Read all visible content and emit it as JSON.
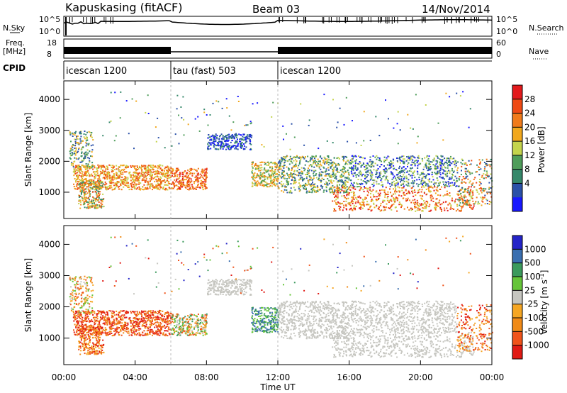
{
  "header": {
    "title": "Kapuskasing (fitACF)",
    "beam": "Beam 03",
    "date": "14/Nov/2014"
  },
  "strip_labels": {
    "nsky": "N.Sky",
    "nsky_top": "10^5",
    "nsky_bottom": "10^0",
    "nsearch": "N.Search",
    "nsearch_top": "10^5",
    "nsearch_bottom": "10^0",
    "freq": "Freq.",
    "freq_unit": "[MHz]",
    "freq_top": "18",
    "freq_bottom": "8",
    "nave": "Nave",
    "nave_top": "60",
    "nave_bottom": "0",
    "cpid": "CPID"
  },
  "cpid_segments": [
    {
      "label": "icescan 1200",
      "start": 0,
      "end": 6
    },
    {
      "label": "tau (fast) 503",
      "start": 6,
      "end": 12
    },
    {
      "label": "icescan 1200",
      "start": 12,
      "end": 24
    }
  ],
  "chart_data": [
    {
      "type": "heatmap",
      "ylabel": "Slant Range [km]",
      "xlim": [
        0,
        24
      ],
      "ylim": [
        150,
        4600
      ],
      "yticks": [
        "1000",
        "2000",
        "3000",
        "4000"
      ],
      "colorbar": {
        "label": "Power [dB]",
        "ticks": [
          "4",
          "8",
          "12",
          "16",
          "20",
          "24",
          "28"
        ],
        "colors": [
          "#1818ff",
          "#2a50a8",
          "#35886a",
          "#4f9d5a",
          "#c4d44c",
          "#f1a81e",
          "#f07b1b",
          "#ef4a14",
          "#e31a1c"
        ]
      }
    },
    {
      "type": "heatmap",
      "xlabel": "Time UT",
      "ylabel": "Slant Range [km]",
      "xlim": [
        0,
        24
      ],
      "ylim": [
        150,
        4600
      ],
      "xticks": [
        "00:00",
        "04:00",
        "08:00",
        "12:00",
        "16:00",
        "20:00",
        "00:00"
      ],
      "yticks": [
        "1000",
        "2000",
        "3000",
        "4000"
      ],
      "colorbar": {
        "label": "Velocity [m s^-1]",
        "ticks": [
          "1000",
          "500",
          "100",
          "25",
          "-25",
          "-100",
          "-500",
          "-1000"
        ],
        "colors": [
          "#2424c8",
          "#3a6fb0",
          "#3b9a5c",
          "#66c53a",
          "#c6c6c0",
          "#f5a623",
          "#f08a17",
          "#f0531a",
          "#e01a14"
        ]
      }
    }
  ]
}
